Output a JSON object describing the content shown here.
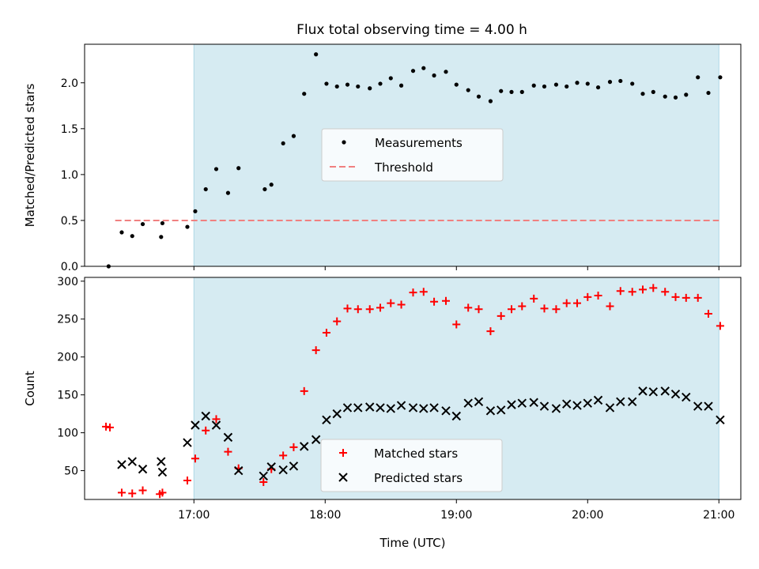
{
  "title": "Flux total observing time = 4.00 h",
  "colors": {
    "shade": "#add8e6",
    "measurement": "#000000",
    "threshold": "#f08080",
    "matched": "#ff0000",
    "predicted": "#000000"
  },
  "chart_data": [
    {
      "type": "scatter",
      "ylabel": "Matched/Predicted stars",
      "xlim": [
        16.167,
        21.167
      ],
      "ylim": [
        0,
        2.42
      ],
      "yticks": [
        0.0,
        0.5,
        1.0,
        1.5,
        2.0
      ],
      "ytick_labels": [
        "0.0",
        "0.5",
        "1.0",
        "1.5",
        "2.0"
      ],
      "xticks": [
        17,
        18,
        19,
        20,
        21
      ],
      "observing_window": [
        17.0,
        21.0
      ],
      "threshold": 0.5,
      "threshold_range": [
        16.4,
        21.0
      ],
      "legend": {
        "position": "center",
        "entries": [
          "Measurements",
          "Threshold"
        ]
      },
      "series": [
        {
          "name": "Measurements",
          "x": [
            16.35,
            16.45,
            16.53,
            16.61,
            16.75,
            16.76,
            16.95,
            17.01,
            17.09,
            17.17,
            17.26,
            17.34,
            17.54,
            17.59,
            17.68,
            17.76,
            17.84,
            17.93,
            18.01,
            18.09,
            18.17,
            18.25,
            18.34,
            18.42,
            18.5,
            18.58,
            18.67,
            18.75,
            18.83,
            18.92,
            19.0,
            19.09,
            19.17,
            19.26,
            19.34,
            19.42,
            19.5,
            19.59,
            19.67,
            19.76,
            19.84,
            19.92,
            20.0,
            20.08,
            20.17,
            20.25,
            20.34,
            20.42,
            20.5,
            20.59,
            20.67,
            20.75,
            20.84,
            20.92,
            21.01
          ],
          "y": [
            0.0,
            0.37,
            0.33,
            0.46,
            0.32,
            0.47,
            0.43,
            0.6,
            0.84,
            1.06,
            0.8,
            1.07,
            0.84,
            0.89,
            1.34,
            1.42,
            1.88,
            2.31,
            1.99,
            1.96,
            1.98,
            1.96,
            1.94,
            1.99,
            2.05,
            1.97,
            2.13,
            2.16,
            2.08,
            2.12,
            1.98,
            1.92,
            1.85,
            1.8,
            1.91,
            1.9,
            1.9,
            1.97,
            1.96,
            1.98,
            1.96,
            2.0,
            1.99,
            1.95,
            2.01,
            2.02,
            1.99,
            1.88,
            1.9,
            1.85,
            1.84,
            1.87,
            2.06,
            1.89,
            2.06
          ]
        }
      ]
    },
    {
      "type": "scatter",
      "xlabel": "Time (UTC)",
      "ylabel": "Count",
      "xlim": [
        16.167,
        21.167
      ],
      "ylim": [
        12,
        305
      ],
      "yticks": [
        50,
        100,
        150,
        200,
        250,
        300
      ],
      "ytick_labels": [
        "50",
        "100",
        "150",
        "200",
        "250",
        "300"
      ],
      "xticks": [
        17,
        18,
        19,
        20,
        21
      ],
      "xtick_labels": [
        "17:00",
        "18:00",
        "19:00",
        "20:00",
        "21:00"
      ],
      "observing_window": [
        17.0,
        21.0
      ],
      "legend": {
        "position": "lower center",
        "entries": [
          "Matched stars",
          "Predicted stars"
        ]
      },
      "series": [
        {
          "name": "Matched stars",
          "x": [
            16.33,
            16.36,
            16.45,
            16.53,
            16.61,
            16.74,
            16.76,
            16.95,
            17.01,
            17.09,
            17.17,
            17.26,
            17.34,
            17.53,
            17.59,
            17.68,
            17.76,
            17.84,
            17.93,
            18.01,
            18.09,
            18.17,
            18.25,
            18.34,
            18.42,
            18.5,
            18.58,
            18.67,
            18.75,
            18.83,
            18.92,
            19.0,
            19.09,
            19.17,
            19.26,
            19.34,
            19.42,
            19.5,
            19.59,
            19.67,
            19.76,
            19.84,
            19.92,
            20.0,
            20.08,
            20.17,
            20.25,
            20.34,
            20.42,
            20.5,
            20.59,
            20.67,
            20.75,
            20.84,
            20.92,
            21.01
          ],
          "y": [
            108,
            107,
            21,
            20,
            24,
            19,
            21,
            37,
            66,
            103,
            118,
            75,
            53,
            35,
            52,
            70,
            81,
            155,
            209,
            232,
            247,
            264,
            263,
            263,
            265,
            271,
            269,
            285,
            286,
            273,
            274,
            243,
            265,
            263,
            234,
            254,
            263,
            267,
            277,
            264,
            263,
            271,
            271,
            279,
            281,
            267,
            287,
            286,
            289,
            291,
            286,
            279,
            278,
            278,
            257,
            241
          ]
        },
        {
          "name": "Predicted stars",
          "x": [
            16.45,
            16.53,
            16.61,
            16.75,
            16.76,
            16.95,
            17.01,
            17.09,
            17.17,
            17.26,
            17.34,
            17.53,
            17.59,
            17.68,
            17.76,
            17.84,
            17.93,
            18.01,
            18.09,
            18.17,
            18.25,
            18.34,
            18.42,
            18.5,
            18.58,
            18.67,
            18.75,
            18.83,
            18.92,
            19.0,
            19.09,
            19.17,
            19.26,
            19.34,
            19.42,
            19.5,
            19.59,
            19.67,
            19.76,
            19.84,
            19.92,
            20.0,
            20.08,
            20.17,
            20.25,
            20.34,
            20.42,
            20.5,
            20.59,
            20.67,
            20.75,
            20.84,
            20.92,
            21.01
          ],
          "y": [
            58,
            62,
            52,
            62,
            48,
            87,
            110,
            122,
            110,
            94,
            50,
            43,
            55,
            51,
            56,
            82,
            91,
            117,
            125,
            133,
            133,
            134,
            133,
            132,
            136,
            133,
            132,
            133,
            129,
            122,
            139,
            141,
            129,
            130,
            137,
            139,
            140,
            135,
            132,
            138,
            136,
            139,
            143,
            133,
            141,
            141,
            155,
            154,
            155,
            151,
            147,
            135,
            135,
            117
          ]
        }
      ]
    }
  ]
}
